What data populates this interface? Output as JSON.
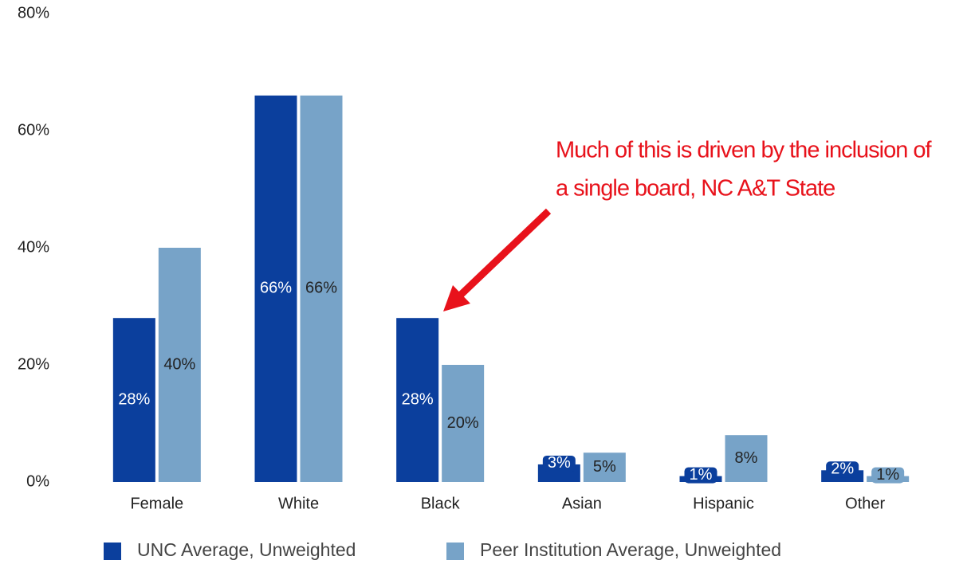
{
  "chart_data": {
    "type": "bar",
    "categories": [
      "Female",
      "White",
      "Black",
      "Asian",
      "Hispanic",
      "Other"
    ],
    "series": [
      {
        "name": "UNC Average, Unweighted",
        "color": "#0b3f9d",
        "values": [
          28,
          66,
          28,
          3,
          1,
          2
        ],
        "value_labels": [
          "28%",
          "66%",
          "28%",
          "3%",
          "1%",
          "2%"
        ]
      },
      {
        "name": "Peer Institution Average, Unweighted",
        "color": "#77a3c8",
        "values": [
          40,
          66,
          20,
          5,
          8,
          1
        ],
        "value_labels": [
          "40%",
          "66%",
          "20%",
          "5%",
          "8%",
          "1%"
        ]
      }
    ],
    "ylim": [
      0,
      80
    ],
    "yticks": [
      {
        "value": 0,
        "label": "0%"
      },
      {
        "value": 20,
        "label": "20%"
      },
      {
        "value": 40,
        "label": "40%"
      },
      {
        "value": 60,
        "label": "60%"
      },
      {
        "value": 80,
        "label": "80%"
      }
    ],
    "grid": false,
    "legend": "bottom",
    "annotation": [
      "Much of this is driven by the inclusion of",
      "a single board, NC A&T State"
    ],
    "annotation_color": "#e8121b"
  }
}
